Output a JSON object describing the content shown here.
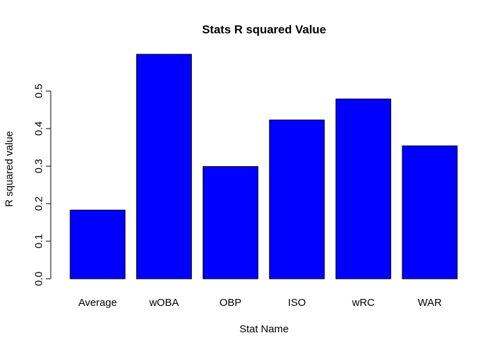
{
  "chart_data": {
    "type": "bar",
    "title": "Stats R squared Value",
    "xlabel": "Stat Name",
    "ylabel": "R squared value",
    "categories": [
      "Average",
      "wOBA",
      "OBP",
      "ISO",
      "wRC",
      "WAR"
    ],
    "values": [
      0.183,
      0.598,
      0.299,
      0.423,
      0.479,
      0.354
    ],
    "ylim": [
      0,
      0.6
    ],
    "yticks": [
      "0.0",
      "0.1",
      "0.2",
      "0.3",
      "0.4",
      "0.5"
    ],
    "grid": false,
    "bar_color": "#0000ff"
  }
}
